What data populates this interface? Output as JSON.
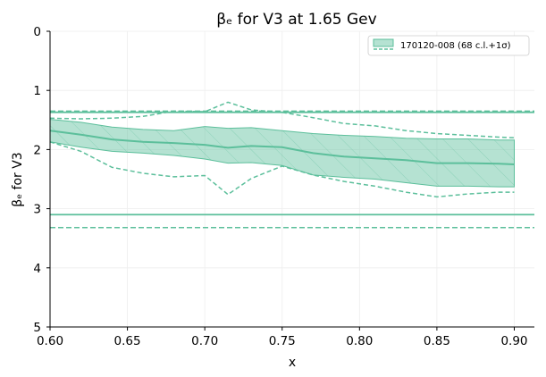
{
  "chart_data": {
    "type": "line",
    "title": "βₑ for V3 at 1.65 Gev",
    "xlabel": "x",
    "ylabel": "βₑ for V3",
    "xlim": [
      0.6,
      0.913
    ],
    "ylim": [
      5,
      0
    ],
    "y_inverted": true,
    "grid": true,
    "x_ticks": [
      "0.60",
      "0.65",
      "0.70",
      "0.75",
      "0.80",
      "0.85",
      "0.90"
    ],
    "y_ticks": [
      "0",
      "1",
      "2",
      "3",
      "4",
      "5"
    ],
    "color": "#5cbf9b",
    "legend": {
      "position": "top-right",
      "label": "170120-008 (68 c.l.+1σ)"
    },
    "series": [
      {
        "name": "170120-008 (68 c.l.+1σ)",
        "x": [
          0.6,
          0.62,
          0.64,
          0.66,
          0.68,
          0.7,
          0.715,
          0.73,
          0.75,
          0.77,
          0.79,
          0.81,
          0.83,
          0.85,
          0.87,
          0.89,
          0.9
        ],
        "central": [
          1.68,
          1.75,
          1.83,
          1.87,
          1.89,
          1.92,
          1.97,
          1.94,
          1.96,
          2.06,
          2.12,
          2.15,
          2.18,
          2.23,
          2.23,
          2.24,
          2.25
        ],
        "band_low": [
          1.49,
          1.54,
          1.62,
          1.66,
          1.68,
          1.61,
          1.64,
          1.63,
          1.68,
          1.73,
          1.76,
          1.78,
          1.81,
          1.82,
          1.82,
          1.84,
          1.84
        ],
        "band_high": [
          1.87,
          1.96,
          2.03,
          2.06,
          2.1,
          2.16,
          2.23,
          2.22,
          2.27,
          2.43,
          2.47,
          2.5,
          2.56,
          2.62,
          2.62,
          2.63,
          2.63
        ],
        "outer_low": [
          1.47,
          1.48,
          1.47,
          1.44,
          1.35,
          1.36,
          1.2,
          1.33,
          1.37,
          1.46,
          1.56,
          1.6,
          1.68,
          1.73,
          1.76,
          1.79,
          1.8
        ],
        "outer_high": [
          1.87,
          2.03,
          2.3,
          2.4,
          2.46,
          2.44,
          2.76,
          2.49,
          2.28,
          2.43,
          2.54,
          2.62,
          2.72,
          2.8,
          2.75,
          2.72,
          2.72
        ],
        "limits_solid": [
          1.37,
          3.1
        ],
        "limits_dashed": [
          1.35,
          3.32
        ]
      }
    ]
  }
}
